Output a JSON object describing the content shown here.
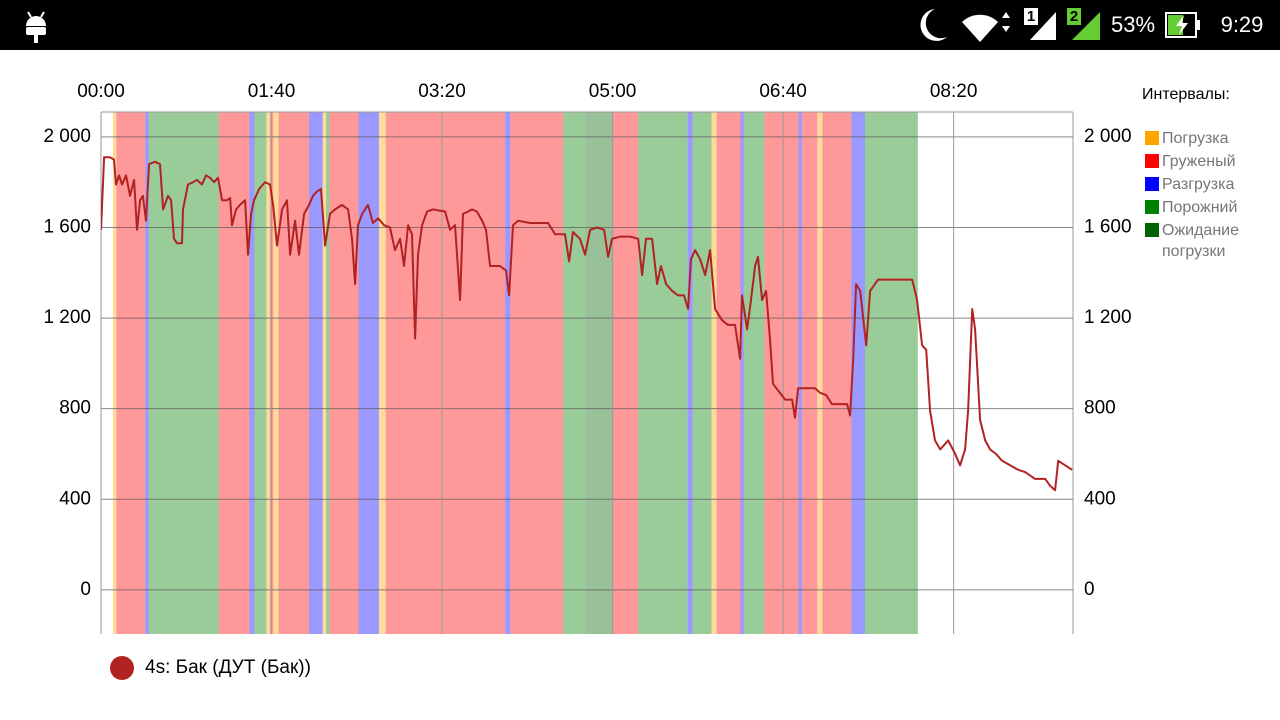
{
  "status_bar": {
    "sim_1": "1",
    "sim_2": "2",
    "battery": "53%",
    "time": "9:29"
  },
  "chart_data": {
    "type": "line",
    "xlim": [
      0,
      570
    ],
    "xticks": [
      {
        "value": 0,
        "label": "00:00"
      },
      {
        "value": 100,
        "label": "01:40"
      },
      {
        "value": 200,
        "label": "03:20"
      },
      {
        "value": 300,
        "label": "05:00"
      },
      {
        "value": 400,
        "label": "06:40"
      },
      {
        "value": 500,
        "label": "08:20"
      }
    ],
    "ylim": [
      -195,
      2110
    ],
    "yticks": [
      0,
      400,
      800,
      {
        "value": 1200,
        "label": "1 200"
      },
      {
        "value": 1600,
        "label": "1 600"
      },
      {
        "value": 2000,
        "label": "2 000"
      }
    ],
    "grid": true,
    "x": [
      0,
      1.8,
      5.3,
      7.6,
      8.8,
      10.6,
      12.3,
      14.7,
      17,
      19.4,
      21.1,
      22.9,
      24.6,
      26.4,
      28.2,
      31.7,
      34.6,
      36.4,
      39.3,
      41.1,
      42.8,
      44.6,
      47.5,
      48.1,
      51,
      54,
      56.3,
      59.2,
      61.6,
      63.9,
      66.3,
      68.6,
      71,
      73.9,
      75.7,
      76.8,
      79.2,
      81.5,
      84.5,
      86.2,
      88,
      89.7,
      92.7,
      96.2,
      99.1,
      100.9,
      103.2,
      106.2,
      109.1,
      110.9,
      113.8,
      116.1,
      119.1,
      122,
      124.3,
      126.7,
      129,
      131.4,
      134.3,
      137.2,
      141.3,
      144.9,
      147.2,
      149,
      150.7,
      153.1,
      156.6,
      159.5,
      162.5,
      166,
      169.5,
      172.4,
      175.4,
      177.7,
      180.1,
      182.4,
      184.2,
      185.9,
      188.3,
      191.2,
      194.7,
      201.8,
      204.7,
      207.6,
      210.6,
      212.3,
      215.2,
      217.6,
      220.5,
      223.5,
      225.8,
      228.2,
      234,
      237.5,
      239.3,
      241.6,
      244.6,
      251.6,
      262.2,
      266.3,
      272.1,
      274.5,
      276.8,
      280.9,
      283.9,
      286.8,
      290.9,
      295,
      297.4,
      299.7,
      304.4,
      310.3,
      315,
      317.3,
      319.6,
      323.2,
      326.1,
      328.4,
      331.4,
      334.9,
      338.4,
      341.9,
      344.3,
      346,
      348.4,
      351.3,
      354.3,
      357.2,
      360.1,
      364.2,
      367.7,
      371.8,
      374.8,
      375.9,
      378.9,
      381.2,
      383.6,
      385.3,
      387.7,
      390,
      392.4,
      394.1,
      397.1,
      401.2,
      405.3,
      407,
      408.8,
      412.9,
      418.8,
      421.7,
      425.2,
      428.7,
      433.4,
      437.5,
      439.3,
      441.1,
      442.8,
      445.2,
      448.7,
      451,
      455.7,
      468.6,
      475.7,
      478.6,
      481.5,
      483.9,
      486.2,
      489.1,
      492.1,
      496.8,
      500.9,
      503.8,
      506.7,
      508.5,
      510.9,
      512.6,
      515.5,
      518.5,
      521.4,
      524.9,
      528.4,
      533.1,
      537.8,
      541.9,
      547.8,
      553.7,
      556.6,
      559.5,
      561.3,
      565.4,
      569.5
    ],
    "series": [
      {
        "name": "4s: Бак (ДУТ (Бак))",
        "color": "#b22222",
        "values": [
          1590,
          1910,
          1910,
          1900,
          1790,
          1830,
          1790,
          1830,
          1740,
          1810,
          1590,
          1720,
          1740,
          1630,
          1880,
          1890,
          1880,
          1680,
          1740,
          1720,
          1550,
          1530,
          1530,
          1680,
          1790,
          1800,
          1810,
          1790,
          1830,
          1820,
          1800,
          1820,
          1720,
          1720,
          1730,
          1610,
          1680,
          1700,
          1720,
          1480,
          1660,
          1720,
          1770,
          1800,
          1790,
          1700,
          1520,
          1680,
          1720,
          1480,
          1630,
          1480,
          1660,
          1700,
          1740,
          1760,
          1770,
          1520,
          1660,
          1680,
          1700,
          1680,
          1550,
          1350,
          1610,
          1660,
          1700,
          1620,
          1640,
          1610,
          1600,
          1500,
          1550,
          1430,
          1610,
          1570,
          1110,
          1480,
          1610,
          1670,
          1680,
          1670,
          1590,
          1610,
          1280,
          1660,
          1670,
          1680,
          1670,
          1630,
          1590,
          1430,
          1430,
          1410,
          1300,
          1610,
          1630,
          1620,
          1620,
          1570,
          1570,
          1450,
          1580,
          1550,
          1480,
          1590,
          1600,
          1590,
          1470,
          1550,
          1560,
          1560,
          1550,
          1390,
          1550,
          1550,
          1350,
          1430,
          1350,
          1320,
          1300,
          1300,
          1240,
          1460,
          1500,
          1460,
          1390,
          1500,
          1240,
          1190,
          1170,
          1170,
          1020,
          1300,
          1150,
          1280,
          1430,
          1470,
          1280,
          1320,
          1100,
          910,
          880,
          840,
          840,
          760,
          890,
          890,
          890,
          870,
          860,
          820,
          820,
          820,
          770,
          1020,
          1350,
          1320,
          1080,
          1320,
          1370,
          1370,
          1370,
          1280,
          1080,
          1060,
          790,
          660,
          620,
          660,
          600,
          550,
          620,
          790,
          1240,
          1150,
          750,
          660,
          620,
          600,
          570,
          550,
          530,
          520,
          490,
          490,
          460,
          440,
          570,
          550,
          530
        ]
      }
    ],
    "intervals_title": "Интервалы:",
    "intervals": [
      {
        "name": "Погрузка",
        "color": "#ffa500",
        "ranges": [
          [
            7,
            9
          ],
          [
            97,
            99
          ],
          [
            101,
            104
          ],
          [
            130,
            132
          ],
          [
            163,
            167
          ],
          [
            358,
            361
          ],
          [
            420,
            423
          ]
        ]
      },
      {
        "name": "Груженый",
        "color": "#ff0000",
        "ranges": [
          [
            9,
            26
          ],
          [
            69,
            87
          ],
          [
            99,
            101
          ],
          [
            104,
            122
          ],
          [
            134,
            151
          ],
          [
            167,
            237
          ],
          [
            240,
            271
          ],
          [
            300,
            315
          ],
          [
            361,
            375
          ],
          [
            389,
            409
          ],
          [
            411,
            420
          ],
          [
            423,
            440
          ]
        ]
      },
      {
        "name": "Разгрузка",
        "color": "#0000ff",
        "ranges": [
          [
            26,
            28
          ],
          [
            87,
            90
          ],
          [
            122,
            130
          ],
          [
            151,
            163
          ],
          [
            237,
            240
          ],
          [
            344,
            347
          ],
          [
            375,
            377
          ],
          [
            409,
            411
          ],
          [
            440,
            448
          ]
        ]
      },
      {
        "name": "Порожний",
        "color": "#008000",
        "ranges": [
          [
            28,
            69
          ],
          [
            90,
            97
          ],
          [
            132,
            134
          ],
          [
            271,
            284
          ],
          [
            315,
            344
          ],
          [
            347,
            358
          ],
          [
            377,
            389
          ],
          [
            448,
            479
          ]
        ]
      },
      {
        "name": "Ожидание погрузки",
        "color": "#006400",
        "ranges": [
          [
            284,
            300
          ]
        ]
      }
    ]
  }
}
